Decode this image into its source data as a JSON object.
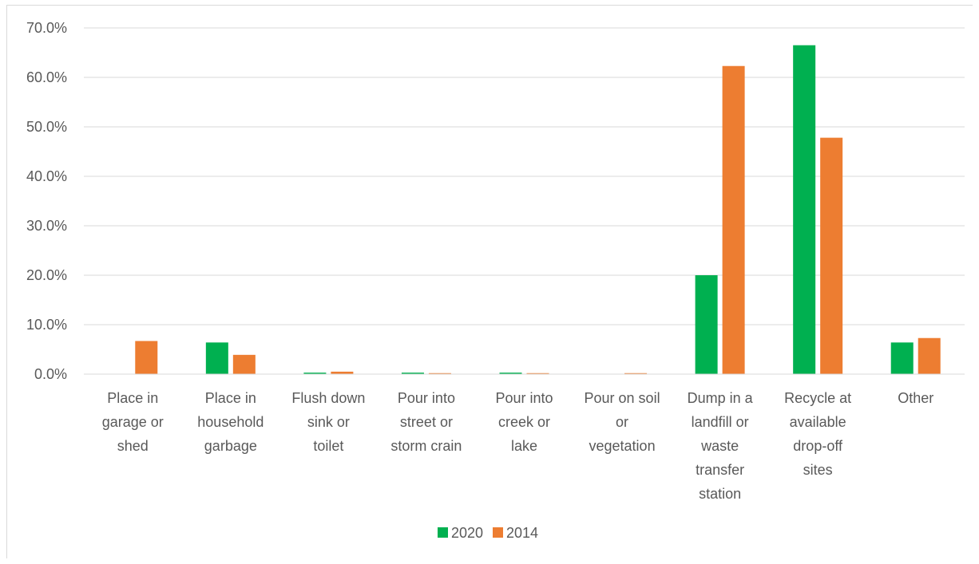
{
  "chart_data": {
    "type": "bar",
    "categories": [
      [
        "Place in",
        "garage or",
        "shed"
      ],
      [
        "Place in",
        "household",
        "garbage"
      ],
      [
        "Flush down",
        "sink or",
        "toilet"
      ],
      [
        "Pour into",
        "street or",
        "storm crain"
      ],
      [
        "Pour into",
        "creek or",
        "lake"
      ],
      [
        "Pour on soil",
        "or",
        "vegetation"
      ],
      [
        "Dump in a",
        "landfill or",
        "waste",
        "transfer",
        "station"
      ],
      [
        "Recycle at",
        "available",
        "drop-off",
        "sites"
      ],
      [
        "Other"
      ]
    ],
    "series": [
      {
        "name": "2020",
        "color": "#00b050",
        "values": [
          0.0,
          6.4,
          0.3,
          0.3,
          0.3,
          0.0,
          20.0,
          66.5,
          6.4
        ]
      },
      {
        "name": "2014",
        "color": "#ed7d31",
        "values": [
          6.7,
          3.9,
          0.5,
          0.2,
          0.2,
          0.2,
          62.3,
          47.8,
          7.3
        ]
      }
    ],
    "yticks": [
      "0.0%",
      "10.0%",
      "20.0%",
      "30.0%",
      "40.0%",
      "50.0%",
      "60.0%",
      "70.0%"
    ],
    "ylim": [
      0,
      70
    ],
    "title": "",
    "xlabel": "",
    "ylabel": "",
    "grid": true,
    "legend_position": "bottom"
  }
}
